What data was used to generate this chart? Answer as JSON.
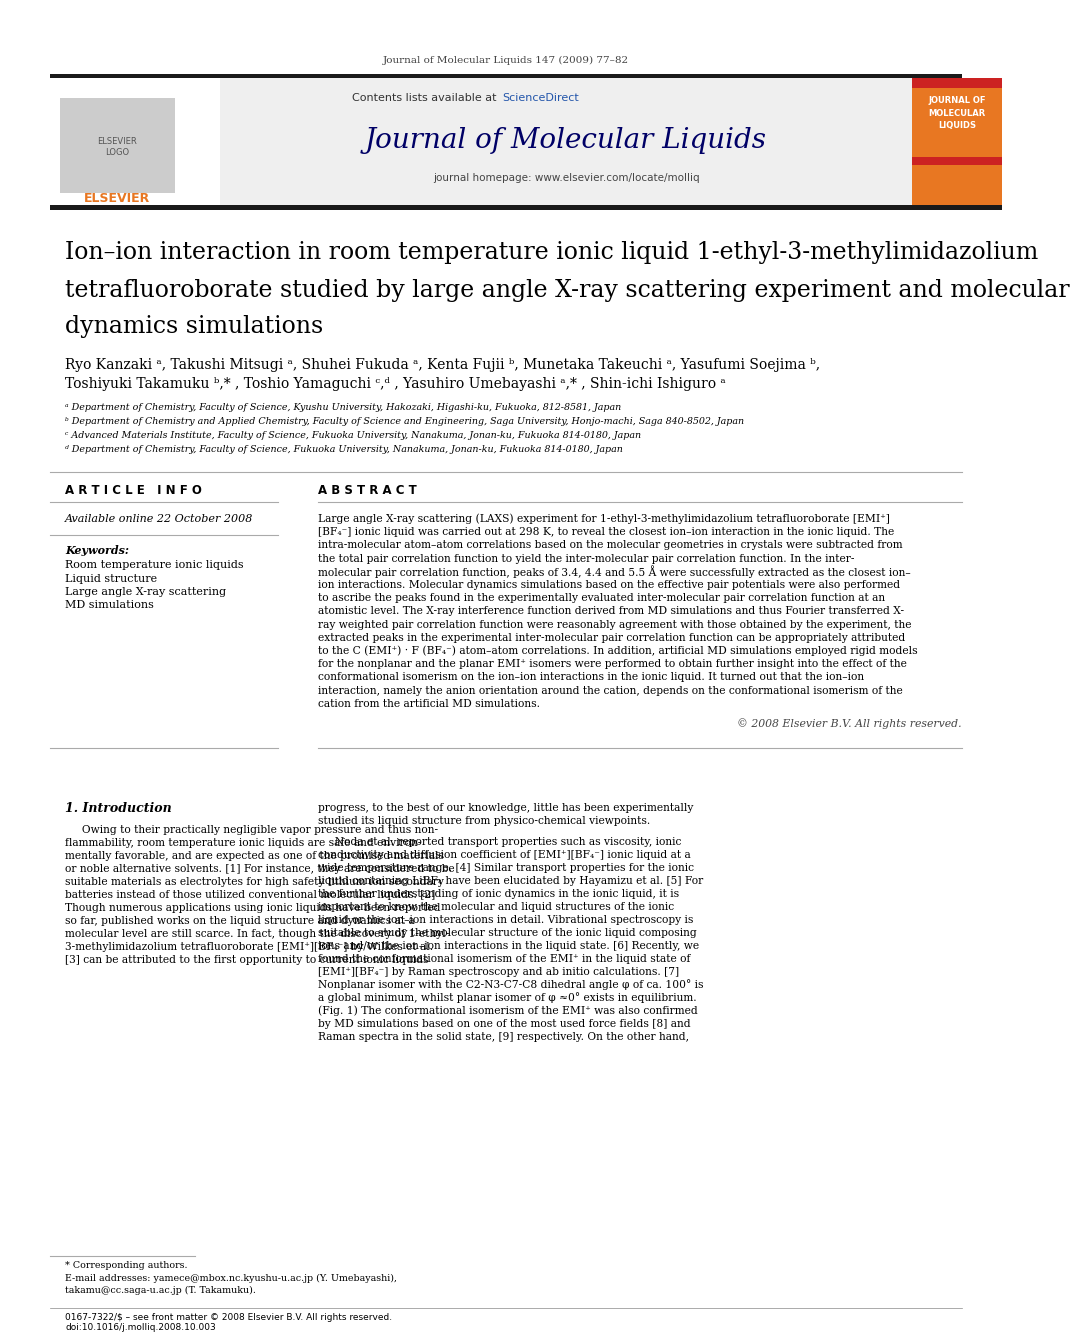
{
  "journal_ref": "Journal of Molecular Liquids 147 (2009) 77–82",
  "journal_name": "Journal of Molecular Liquids",
  "journal_homepage": "journal homepage: www.elsevier.com/locate/molliq",
  "contents_line": "Contents lists available at ScienceDirect",
  "title_line1": "Ion–ion interaction in room temperature ionic liquid 1-ethyl-3-methylimidazolium",
  "title_line2": "tetrafluoroborate studied by large angle X-ray scattering experiment and molecular",
  "title_line3": "dynamics simulations",
  "authors_line1": "Ryo Kanzaki ᵃ, Takushi Mitsugi ᵃ, Shuhei Fukuda ᵃ, Kenta Fujii ᵇ, Munetaka Takeuchi ᵃ, Yasufumi Soejima ᵇ,",
  "authors_line2": "Toshiyuki Takamuku ᵇ,* , Toshio Yamaguchi ᶜ,ᵈ , Yasuhiro Umebayashi ᵃ,* , Shin-ichi Ishiguro ᵃ",
  "affil_a": "ᵃ Department of Chemistry, Faculty of Science, Kyushu University, Hakozaki, Higashi-ku, Fukuoka, 812-8581, Japan",
  "affil_b": "ᵇ Department of Chemistry and Applied Chemistry, Faculty of Science and Engineering, Saga University, Honjo-machi, Saga 840-8502, Japan",
  "affil_c": "ᶜ Advanced Materials Institute, Faculty of Science, Fukuoka University, Nanakuma, Jonan-ku, Fukuoka 814-0180, Japan",
  "affil_d": "ᵈ Department of Chemistry, Faculty of Science, Fukuoka University, Nanakuma, Jonan-ku, Fukuoka 814-0180, Japan",
  "article_info_header": "A R T I C L E   I N F O",
  "abstract_header": "A B S T R A C T",
  "available_online": "Available online 22 October 2008",
  "keywords_header": "Keywords:",
  "keywords": [
    "Room temperature ionic liquids",
    "Liquid structure",
    "Large angle X-ray scattering",
    "MD simulations"
  ],
  "abstract_lines": [
    "Large angle X-ray scattering (LAXS) experiment for 1-ethyl-3-methylimidazolium tetrafluoroborate [EMI⁺]",
    "[BF₄⁻] ionic liquid was carried out at 298 K, to reveal the closest ion–ion interaction in the ionic liquid. The",
    "intra-molecular atom–atom correlations based on the molecular geometries in crystals were subtracted from",
    "the total pair correlation function to yield the inter-molecular pair correlation function. In the inter-",
    "molecular pair correlation function, peaks of 3.4, 4.4 and 5.5 Å were successfully extracted as the closest ion–",
    "ion interactions. Molecular dynamics simulations based on the effective pair potentials were also performed",
    "to ascribe the peaks found in the experimentally evaluated inter-molecular pair correlation function at an",
    "atomistic level. The X-ray interference function derived from MD simulations and thus Fourier transferred X-",
    "ray weighted pair correlation function were reasonably agreement with those obtained by the experiment, the",
    "extracted peaks in the experimental inter-molecular pair correlation function can be appropriately attributed",
    "to the C (EMI⁺) · F (BF₄⁻) atom–atom correlations. In addition, artificial MD simulations employed rigid models",
    "for the nonplanar and the planar EMI⁺ isomers were performed to obtain further insight into the effect of the",
    "conformational isomerism on the ion–ion interactions in the ionic liquid. It turned out that the ion–ion",
    "interaction, namely the anion orientation around the cation, depends on the conformational isomerism of the",
    "cation from the artificial MD simulations."
  ],
  "copyright": "© 2008 Elsevier B.V. All rights reserved.",
  "intro_header": "1. Introduction",
  "intro_col1_lines": [
    "     Owing to their practically negligible vapor pressure and thus non-",
    "flammability, room temperature ionic liquids are safe and environ-",
    "mentally favorable, and are expected as one of the promised materials",
    "or noble alternative solvents. [1] For instance, they are considered to be",
    "suitable materials as electrolytes for high safety lithium ion secondary",
    "batteries instead of those utilized conventional molecular liquids. [2]",
    "Though numerous applications using ionic liquids have been reported",
    "so far, published works on the liquid structure and dynamics at a",
    "molecular level are still scarce. In fact, though the discovery of 1-ethyl-",
    "3-methylimidazolium tetrafluoroborate [EMI⁺][BF₄⁻] by Wilkes et al.",
    "[3] can be attributed to the first opportunity to current ionic liquids"
  ],
  "intro_col2_lines": [
    "progress, to the best of our knowledge, little has been experimentally",
    "studied its liquid structure from physico-chemical viewpoints.",
    "",
    "     Noda et al. reported transport properties such as viscosity, ionic",
    "conductivity and diffusion coefficient of [EMI⁺][BF₄⁻] ionic liquid at a",
    "wide temperature range. [4] Similar transport properties for the ionic",
    "liquid containing LiBF₄ have been elucidated by Hayamizu et al. [5] For",
    "the further understanding of ionic dynamics in the ionic liquid, it is",
    "important to know the molecular and liquid structures of the ionic",
    "liquid or the ion–ion interactions in detail. Vibrational spectroscopy is",
    "suitable to study the molecular structure of the ionic liquid composing",
    "ions and/or the ion–ion interactions in the liquid state. [6] Recently, we",
    "found the conformational isomerism of the EMI⁺ in the liquid state of",
    "[EMI⁺][BF₄⁻] by Raman spectroscopy and ab initio calculations. [7]",
    "Nonplanar isomer with the C2-N3-C7-C8 dihedral angle φ of ca. 100° is",
    "a global minimum, whilst planar isomer of φ ≈0° exists in equilibrium.",
    "(Fig. 1) The conformational isomerism of the EMI⁺ was also confirmed",
    "by MD simulations based on one of the most used force fields [8] and",
    "Raman spectra in the solid state, [9] respectively. On the other hand,"
  ],
  "footnote_star": "* Corresponding authors.",
  "footnote_email1": "E-mail addresses: yamece@mbox.nc.kyushu-u.ac.jp (Y. Umebayashi),",
  "footnote_email2": "takamu@cc.saga-u.ac.jp (T. Takamuku).",
  "footer_left": "0167-7322/$ – see front matter © 2008 Elsevier B.V. All rights reserved.",
  "footer_doi": "doi:10.1016/j.molliq.2008.10.003",
  "bg_color": "#ffffff",
  "header_bg": "#efefef",
  "orange_color": "#E87722",
  "blue_color": "#2255aa",
  "dark_blue": "#000066",
  "black": "#000000",
  "dark_gray": "#1a1a1a",
  "mid_gray": "#888888",
  "light_gray": "#cccccc"
}
